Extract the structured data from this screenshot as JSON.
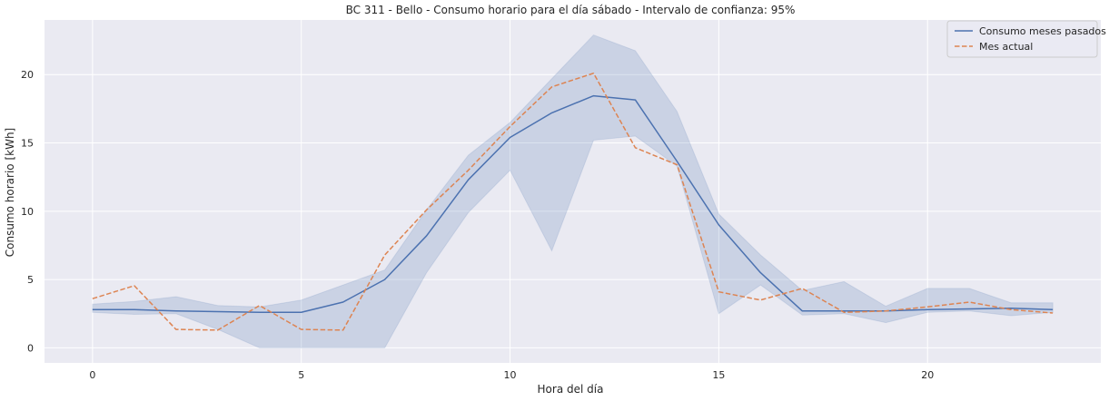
{
  "chart_data": {
    "type": "line",
    "title": "BC 311 - Bello - Consumo horario para el día sábado - Intervalo de confianza: 95%",
    "xlabel": "Hora del día",
    "ylabel": "Consumo horario [kWh]",
    "xlim": [
      -1.15,
      24.15
    ],
    "ylim": [
      -1.1,
      24.0
    ],
    "xticks": [
      0,
      5,
      10,
      15,
      20
    ],
    "yticks": [
      0,
      5,
      10,
      15,
      20
    ],
    "grid": true,
    "legend_position": "top-right",
    "x": [
      0,
      1,
      2,
      3,
      4,
      5,
      6,
      7,
      8,
      9,
      10,
      11,
      12,
      13,
      14,
      15,
      16,
      17,
      18,
      19,
      20,
      21,
      22,
      23
    ],
    "series": [
      {
        "name": "Consumo meses pasados",
        "style": "solid",
        "color": "#4c72b0",
        "values": [
          2.8,
          2.8,
          2.7,
          2.65,
          2.6,
          2.6,
          3.35,
          5.0,
          8.2,
          12.3,
          15.4,
          17.2,
          18.45,
          18.15,
          13.65,
          9.0,
          5.5,
          2.7,
          2.7,
          2.7,
          2.8,
          2.85,
          2.9,
          2.8
        ],
        "ci_lower": [
          2.6,
          2.45,
          2.5,
          1.35,
          0.0,
          0.0,
          0.0,
          0.0,
          5.5,
          9.9,
          13.0,
          7.1,
          15.2,
          15.5,
          13.3,
          2.5,
          4.6,
          2.4,
          2.5,
          1.85,
          2.6,
          2.7,
          2.35,
          2.6
        ],
        "ci_upper": [
          3.2,
          3.4,
          3.75,
          3.1,
          3.0,
          3.5,
          4.6,
          5.7,
          10.1,
          14.1,
          16.5,
          19.7,
          22.9,
          21.75,
          17.3,
          9.8,
          6.8,
          4.2,
          4.85,
          3.05,
          4.35,
          4.35,
          3.3,
          3.3
        ]
      },
      {
        "name": "Mes actual",
        "style": "dashed",
        "color": "#dd8452",
        "values": [
          3.6,
          4.55,
          1.35,
          1.3,
          3.1,
          1.35,
          1.3,
          6.8,
          10.1,
          13.0,
          16.2,
          19.1,
          20.1,
          14.65,
          13.4,
          4.1,
          3.5,
          4.35,
          2.6,
          2.7,
          3.0,
          3.35,
          2.8,
          2.55
        ]
      }
    ]
  },
  "colors": {
    "background": "#eaeaf2",
    "grid": "#ffffff",
    "ci_fill": "#4c72b0"
  }
}
